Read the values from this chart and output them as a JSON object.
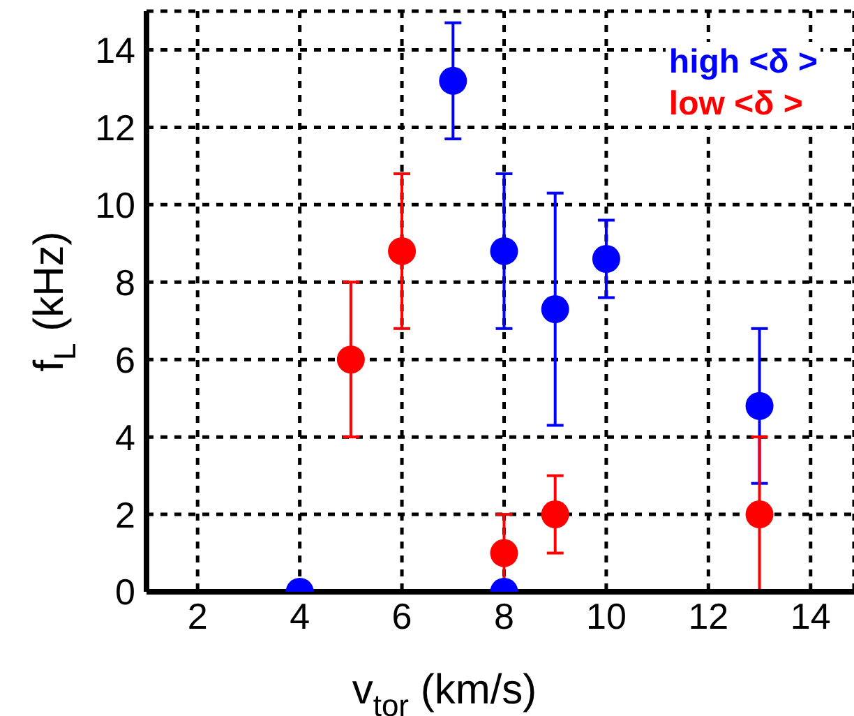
{
  "chart_data": {
    "type": "scatter",
    "xlabel": "v$_{tor}$ (km/s)",
    "ylabel": "f$_{L}$ (kHz)",
    "xlim": [
      1,
      14.85
    ],
    "xticks": [
      2,
      4,
      6,
      8,
      10,
      12,
      14
    ],
    "ylim": [
      0,
      15
    ],
    "yticks": [
      0,
      2,
      4,
      6,
      8,
      10,
      12,
      14
    ],
    "grid": true,
    "legend": "top right",
    "marker": "circle",
    "series": [
      {
        "name": "high <δ >",
        "color": "#0000ff",
        "x": [
          4,
          7,
          8,
          8,
          9,
          10,
          13
        ],
        "values": [
          0,
          13.2,
          8.8,
          0,
          7.3,
          8.6,
          4.8
        ],
        "errors": [
          null,
          [
            11.7,
            14.7
          ],
          [
            6.8,
            10.8
          ],
          null,
          [
            4.3,
            10.3
          ],
          [
            7.6,
            9.6
          ],
          [
            2.8,
            6.8
          ]
        ]
      },
      {
        "name": "low <δ >",
        "color": "#ff0000",
        "x": [
          5,
          6,
          8,
          9,
          13
        ],
        "values": [
          6,
          8.8,
          1,
          2,
          2
        ],
        "errors": [
          [
            4,
            8
          ],
          [
            6.8,
            10.8
          ],
          [
            0,
            2
          ],
          [
            1,
            3
          ],
          [
            0,
            4
          ]
        ]
      }
    ]
  }
}
